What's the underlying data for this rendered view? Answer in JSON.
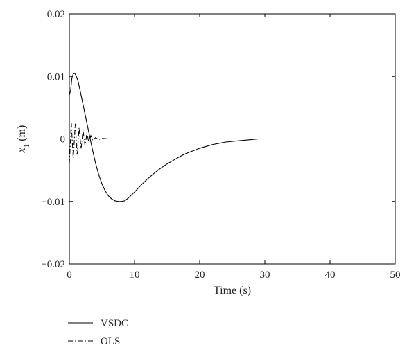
{
  "chart_data": {
    "type": "line",
    "xlabel": "Time (s)",
    "ylabel": {
      "main": "x",
      "sub": "1",
      "unit": " (m)"
    },
    "xlim": [
      0,
      50
    ],
    "ylim": [
      -0.02,
      0.02
    ],
    "x_ticks": [
      0,
      10,
      20,
      30,
      40,
      50
    ],
    "x_tick_labels": [
      "0",
      "10",
      "20",
      "30",
      "40",
      "50"
    ],
    "y_ticks": [
      0.02,
      0.01,
      0,
      -0.01,
      -0.02
    ],
    "y_tick_labels": [
      "0.02",
      "0.01",
      "0",
      "−0.01",
      "−0.02"
    ],
    "grid": false,
    "legend_position": "below-left",
    "series": [
      {
        "name": "VSDC",
        "style": "solid",
        "color": "#000000",
        "points": [
          [
            0,
            0.007
          ],
          [
            0.2,
            0.0078
          ],
          [
            0.4,
            0.0098
          ],
          [
            0.6,
            0.0104
          ],
          [
            0.8,
            0.0105
          ],
          [
            1.0,
            0.0102
          ],
          [
            1.3,
            0.0094
          ],
          [
            1.6,
            0.008
          ],
          [
            2.0,
            0.006
          ],
          [
            2.5,
            0.0035
          ],
          [
            3.0,
            0.001
          ],
          [
            3.5,
            -0.0015
          ],
          [
            4.0,
            -0.0038
          ],
          [
            4.5,
            -0.0057
          ],
          [
            5.0,
            -0.0072
          ],
          [
            5.5,
            -0.0083
          ],
          [
            6.0,
            -0.0091
          ],
          [
            6.5,
            -0.0096
          ],
          [
            7.0,
            -0.0099
          ],
          [
            7.5,
            -0.01
          ],
          [
            8.0,
            -0.01
          ],
          [
            8.5,
            -0.0099
          ],
          [
            9.0,
            -0.0095
          ],
          [
            10,
            -0.0085
          ],
          [
            11,
            -0.0074
          ],
          [
            12,
            -0.0064
          ],
          [
            13,
            -0.0055
          ],
          [
            14,
            -0.0047
          ],
          [
            15,
            -0.004
          ],
          [
            16,
            -0.0034
          ],
          [
            17,
            -0.0028
          ],
          [
            18,
            -0.0023
          ],
          [
            19,
            -0.0019
          ],
          [
            20,
            -0.0015
          ],
          [
            21,
            -0.0012
          ],
          [
            22,
            -0.0009
          ],
          [
            23,
            -0.0007
          ],
          [
            24,
            -0.0005
          ],
          [
            25,
            -0.0004
          ],
          [
            26,
            -0.0003
          ],
          [
            27,
            -0.0002
          ],
          [
            28,
            -0.0001
          ],
          [
            29,
            0
          ],
          [
            30,
            0
          ],
          [
            40,
            0
          ],
          [
            50,
            0
          ]
        ]
      },
      {
        "name": "OLS",
        "style": "dash-dot",
        "color": "#000000",
        "points": [
          [
            0,
            -0.004
          ],
          [
            0.3,
            0.0025
          ],
          [
            0.6,
            -0.0032
          ],
          [
            0.9,
            0.0024
          ],
          [
            1.2,
            -0.0025
          ],
          [
            1.5,
            0.0018
          ],
          [
            1.8,
            -0.0016
          ],
          [
            2.1,
            0.0014
          ],
          [
            2.4,
            -0.0011
          ],
          [
            2.7,
            0.0009
          ],
          [
            3.0,
            -0.0006
          ],
          [
            3.3,
            0.0005
          ],
          [
            3.6,
            -0.0003
          ],
          [
            4.0,
            0.0002
          ],
          [
            4.5,
            -0.0001
          ],
          [
            5.0,
            0.0001
          ],
          [
            6.0,
            0
          ],
          [
            8.0,
            0
          ],
          [
            10.0,
            0
          ],
          [
            12.0,
            0
          ],
          [
            50,
            0
          ]
        ]
      }
    ]
  }
}
